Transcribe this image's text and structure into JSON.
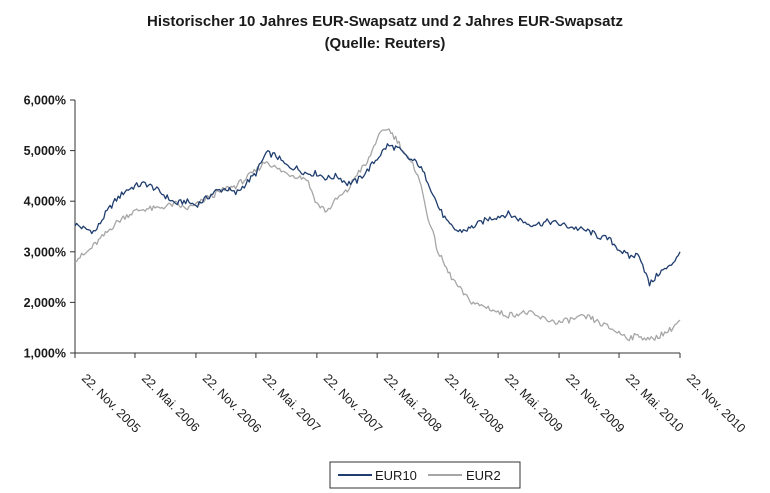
{
  "chart_data": {
    "type": "line",
    "title": "Historischer 10 Jahres EUR-Swapsatz und 2 Jahres EUR-Swapsatz",
    "subtitle": "(Quelle: Reuters)",
    "xlabel": "",
    "ylabel": "",
    "ylim": [
      1.0,
      6.0
    ],
    "y_ticks": [
      "1,000%",
      "2,000%",
      "3,000%",
      "4,000%",
      "5,000%",
      "6,000%"
    ],
    "y_tick_values": [
      1,
      2,
      3,
      4,
      5,
      6
    ],
    "x_range": [
      "2005-11-22",
      "2010-11-22"
    ],
    "x_ticks": [
      "22. Nov. 2005",
      "22. Mai. 2006",
      "22. Nov. 2006",
      "22. Mai. 2007",
      "22. Nov. 2007",
      "22. Mai. 2008",
      "22. Nov. 2008",
      "22. Mai. 2009",
      "22. Nov. 2009",
      "22. Mai. 2010",
      "22. Nov. 2010"
    ],
    "x_tick_dates": [
      "2005-11-22",
      "2006-05-22",
      "2006-11-22",
      "2007-05-22",
      "2007-11-22",
      "2008-05-22",
      "2008-11-22",
      "2009-05-22",
      "2009-11-22",
      "2010-05-22",
      "2010-11-22"
    ],
    "legend": {
      "position": "bottom-center"
    },
    "grid": false,
    "series": [
      {
        "name": "EUR10",
        "color": "#1f3d6e",
        "x": [
          "2005-11-22",
          "2005-12-22",
          "2006-01-22",
          "2006-02-22",
          "2006-03-22",
          "2006-04-22",
          "2006-05-22",
          "2006-06-22",
          "2006-07-22",
          "2006-08-22",
          "2006-09-22",
          "2006-10-22",
          "2006-11-22",
          "2006-12-22",
          "2007-01-22",
          "2007-02-22",
          "2007-03-22",
          "2007-04-22",
          "2007-05-22",
          "2007-06-22",
          "2007-07-22",
          "2007-08-22",
          "2007-09-22",
          "2007-10-22",
          "2007-11-22",
          "2007-12-22",
          "2008-01-22",
          "2008-02-22",
          "2008-03-22",
          "2008-04-22",
          "2008-05-22",
          "2008-06-22",
          "2008-07-22",
          "2008-08-22",
          "2008-09-22",
          "2008-10-22",
          "2008-11-22",
          "2008-12-22",
          "2009-01-22",
          "2009-02-22",
          "2009-03-22",
          "2009-04-22",
          "2009-05-22",
          "2009-06-22",
          "2009-07-22",
          "2009-08-22",
          "2009-09-22",
          "2009-10-22",
          "2009-11-22",
          "2009-12-22",
          "2010-01-22",
          "2010-02-22",
          "2010-03-22",
          "2010-04-22",
          "2010-05-22",
          "2010-06-22",
          "2010-07-22",
          "2010-08-22",
          "2010-09-22",
          "2010-10-22",
          "2010-11-22"
        ],
        "values": [
          3.55,
          3.45,
          3.4,
          3.75,
          4.0,
          4.2,
          4.3,
          4.35,
          4.25,
          4.1,
          3.95,
          4.0,
          3.92,
          4.05,
          4.2,
          4.25,
          4.15,
          4.35,
          4.55,
          4.95,
          4.9,
          4.7,
          4.65,
          4.55,
          4.55,
          4.45,
          4.5,
          4.35,
          4.4,
          4.6,
          4.85,
          5.1,
          5.05,
          4.85,
          4.75,
          4.4,
          3.9,
          3.55,
          3.4,
          3.45,
          3.55,
          3.65,
          3.7,
          3.75,
          3.65,
          3.55,
          3.55,
          3.6,
          3.55,
          3.5,
          3.45,
          3.4,
          3.3,
          3.25,
          3.05,
          2.9,
          2.95,
          2.35,
          2.6,
          2.7,
          3.0
        ]
      },
      {
        "name": "EUR2",
        "color": "#a6a6a6",
        "x": [
          "2005-11-22",
          "2005-12-22",
          "2006-01-22",
          "2006-02-22",
          "2006-03-22",
          "2006-04-22",
          "2006-05-22",
          "2006-06-22",
          "2006-07-22",
          "2006-08-22",
          "2006-09-22",
          "2006-10-22",
          "2006-11-22",
          "2006-12-22",
          "2007-01-22",
          "2007-02-22",
          "2007-03-22",
          "2007-04-22",
          "2007-05-22",
          "2007-06-22",
          "2007-07-22",
          "2007-08-22",
          "2007-09-22",
          "2007-10-22",
          "2007-11-22",
          "2007-12-22",
          "2008-01-22",
          "2008-02-22",
          "2008-03-22",
          "2008-04-22",
          "2008-05-22",
          "2008-06-22",
          "2008-07-22",
          "2008-08-22",
          "2008-09-22",
          "2008-10-22",
          "2008-11-22",
          "2008-12-22",
          "2009-01-22",
          "2009-02-22",
          "2009-03-22",
          "2009-04-22",
          "2009-05-22",
          "2009-06-22",
          "2009-07-22",
          "2009-08-22",
          "2009-09-22",
          "2009-10-22",
          "2009-11-22",
          "2009-12-22",
          "2010-01-22",
          "2010-02-22",
          "2010-03-22",
          "2010-04-22",
          "2010-05-22",
          "2010-06-22",
          "2010-07-22",
          "2010-08-22",
          "2010-09-22",
          "2010-10-22",
          "2010-11-22"
        ],
        "values": [
          2.85,
          2.95,
          3.15,
          3.35,
          3.55,
          3.7,
          3.8,
          3.85,
          3.85,
          3.9,
          3.95,
          3.85,
          3.92,
          4.05,
          4.15,
          4.25,
          4.3,
          4.45,
          4.6,
          4.8,
          4.65,
          4.55,
          4.5,
          4.45,
          3.95,
          3.8,
          4.05,
          4.2,
          4.55,
          4.75,
          5.25,
          5.45,
          5.2,
          4.85,
          4.55,
          3.7,
          3.0,
          2.6,
          2.3,
          2.05,
          1.95,
          1.9,
          1.8,
          1.75,
          1.78,
          1.8,
          1.7,
          1.65,
          1.6,
          1.65,
          1.7,
          1.7,
          1.6,
          1.5,
          1.4,
          1.3,
          1.35,
          1.25,
          1.35,
          1.45,
          1.65
        ]
      }
    ]
  }
}
